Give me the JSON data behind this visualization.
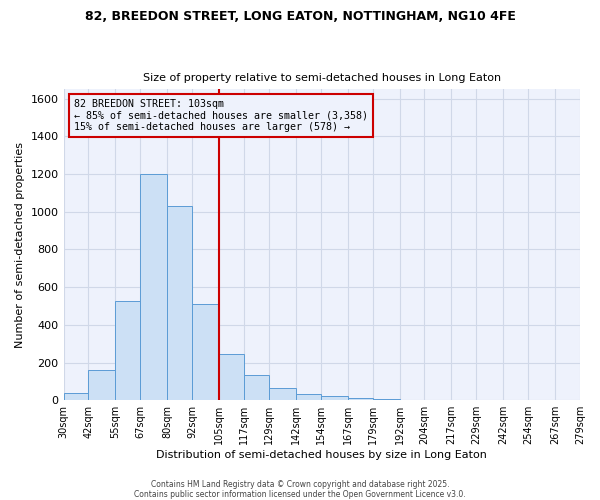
{
  "title_line1": "82, BREEDON STREET, LONG EATON, NOTTINGHAM, NG10 4FE",
  "title_line2": "Size of property relative to semi-detached houses in Long Eaton",
  "xlabel": "Distribution of semi-detached houses by size in Long Eaton",
  "ylabel": "Number of semi-detached properties",
  "footnote1": "Contains HM Land Registry data © Crown copyright and database right 2025.",
  "footnote2": "Contains public sector information licensed under the Open Government Licence v3.0.",
  "bin_edges": [
    30,
    42,
    55,
    67,
    80,
    92,
    105,
    117,
    129,
    142,
    154,
    167,
    179,
    192,
    204,
    217,
    229,
    242,
    254,
    267,
    279
  ],
  "bin_labels": [
    "30sqm",
    "42sqm",
    "55sqm",
    "67sqm",
    "80sqm",
    "92sqm",
    "105sqm",
    "117sqm",
    "129sqm",
    "142sqm",
    "154sqm",
    "167sqm",
    "179sqm",
    "192sqm",
    "204sqm",
    "217sqm",
    "229sqm",
    "242sqm",
    "254sqm",
    "267sqm",
    "279sqm"
  ],
  "counts": [
    40,
    160,
    525,
    1200,
    1030,
    510,
    245,
    135,
    65,
    35,
    20,
    10,
    5,
    0,
    0,
    0,
    0,
    0,
    0,
    0
  ],
  "bar_facecolor": "#cce0f5",
  "bar_edgecolor": "#5b9bd5",
  "grid_color": "#d0d8e8",
  "background_color": "#eef2fc",
  "vline_x": 105,
  "vline_color": "#cc0000",
  "annotation_title": "82 BREEDON STREET: 103sqm",
  "annotation_line1": "← 85% of semi-detached houses are smaller (3,358)",
  "annotation_line2": "15% of semi-detached houses are larger (578) →",
  "annotation_box_edgecolor": "#cc0000",
  "ylim": [
    0,
    1650
  ],
  "yticks": [
    0,
    200,
    400,
    600,
    800,
    1000,
    1200,
    1400,
    1600
  ]
}
